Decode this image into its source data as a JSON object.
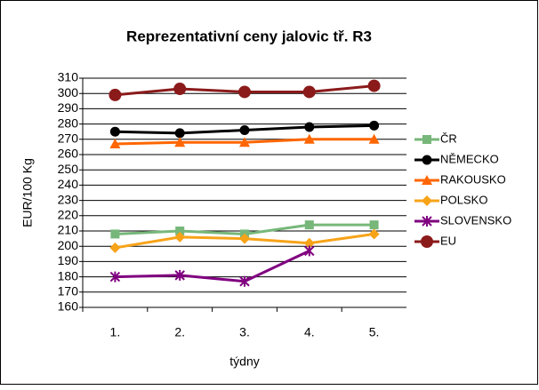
{
  "chart_data": {
    "type": "line",
    "title": "Reprezentativní ceny jalovic tř. R3",
    "y_label": "EUR/100 Kg",
    "x_label": "týdny",
    "categories": [
      "1.",
      "2.",
      "3.",
      "4.",
      "5."
    ],
    "series": [
      {
        "name": "ČR",
        "color": "#77b77a",
        "marker": "square",
        "values": [
          208,
          210,
          208,
          214,
          214
        ]
      },
      {
        "name": "NĚMECKO",
        "color": "#000000",
        "marker": "circle",
        "values": [
          275,
          274,
          276,
          278,
          279
        ]
      },
      {
        "name": "RAKOUSKO",
        "color": "#ff6600",
        "marker": "triangle",
        "values": [
          267,
          268,
          268,
          270,
          270
        ]
      },
      {
        "name": "POLSKO",
        "color": "#f7a318",
        "marker": "diamond",
        "values": [
          199,
          206,
          205,
          202,
          208
        ]
      },
      {
        "name": "SLOVENSKO",
        "color": "#800080",
        "marker": "star",
        "values": [
          180,
          181,
          177,
          197,
          null
        ]
      },
      {
        "name": "EU",
        "color": "#8b1a1a",
        "marker": "bigcircle",
        "values": [
          299,
          303,
          301,
          301,
          305
        ]
      }
    ],
    "ylim": [
      160,
      310
    ],
    "yticks": [
      160,
      170,
      180,
      190,
      200,
      210,
      220,
      230,
      240,
      250,
      260,
      270,
      280,
      290,
      300,
      310
    ],
    "grid": true,
    "legend": "right"
  }
}
